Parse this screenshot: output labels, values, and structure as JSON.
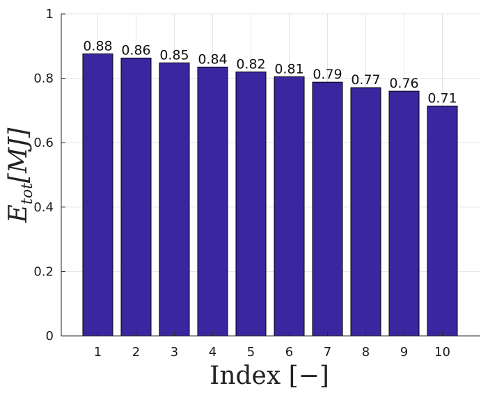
{
  "chart_data": {
    "type": "bar",
    "categories": [
      "1",
      "2",
      "3",
      "4",
      "5",
      "6",
      "7",
      "8",
      "9",
      "10"
    ],
    "values": [
      0.876,
      0.863,
      0.848,
      0.835,
      0.82,
      0.805,
      0.788,
      0.771,
      0.76,
      0.714
    ],
    "data_labels": [
      "0.88",
      "0.86",
      "0.85",
      "0.84",
      "0.82",
      "0.81",
      "0.79",
      "0.77",
      "0.76",
      "0.71"
    ],
    "title": "",
    "xlabel": "Index [−]",
    "ylabel": {
      "main": "E",
      "sub": "tot",
      "rest": "[MJ]"
    },
    "ylim": [
      0,
      1
    ],
    "yticks": [
      "0",
      "0.2",
      "0.4",
      "0.6",
      "0.8",
      "1"
    ],
    "grid": true,
    "bar_color": "#3a27a0",
    "bar_edge_color": "#000000"
  }
}
